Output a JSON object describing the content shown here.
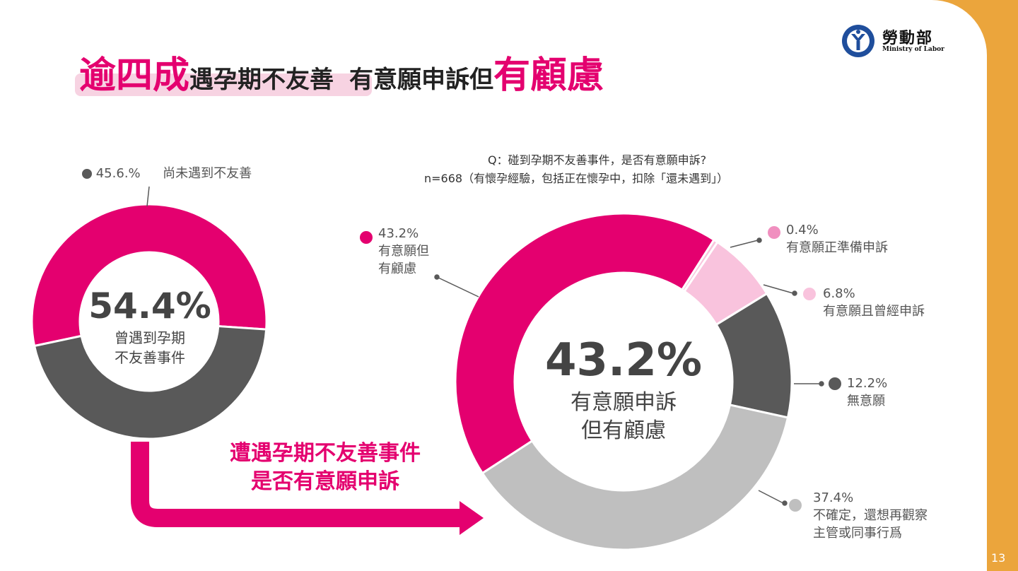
{
  "colors": {
    "pink": "#e4006f",
    "dark_gray": "#595959",
    "light_pink": "#f9c3dd",
    "light_gray": "#bfbfbf",
    "orange": "#eba53c"
  },
  "title": {
    "part1": "逾四成",
    "part2": "遇孕期不友善",
    "part3": "有意願申訴但",
    "part4": "有顧慮"
  },
  "logo": {
    "name_zh": "勞動部",
    "name_en": "Ministry of Labor",
    "icon": "ministry-of-labor-emblem"
  },
  "question": {
    "line1": "Q：碰到孕期不友善事件，是否有意願申訴?",
    "line2": "n=668（有懷孕經驗，包括正在懷孕中，扣除「還未遇到」）"
  },
  "left_chart": {
    "center_pct": "54.4%",
    "center_line1": "曾遇到孕期",
    "center_line2": "不友善事件",
    "unmet_label": "45.6.%",
    "unmet_text": "尚未遇到不友善"
  },
  "arrow_caption": {
    "line1": "遭遇孕期不友善事件",
    "line2": "是否有意願申訴"
  },
  "right_chart": {
    "center_pct": "43.2%",
    "center_line1": "有意願申訴",
    "center_line2": "但有顧慮",
    "labels": [
      {
        "pct": "43.2%",
        "line1": "有意願但",
        "line2": "有顧慮"
      },
      {
        "pct": "0.4%",
        "line1": "有意願正準備申訴"
      },
      {
        "pct": "6.8%",
        "line1": "有意願且曾經申訴"
      },
      {
        "pct": "12.2%",
        "line1": "無意願"
      },
      {
        "pct": "37.4%",
        "line1": "不確定，還想再觀察",
        "line2": "主管或同事行爲"
      }
    ]
  },
  "page_number": "13",
  "chart_data": [
    {
      "type": "pie",
      "categories": [
        "曾遇到孕期不友善事件",
        "尚未遇到不友善"
      ],
      "values": [
        54.4,
        45.6
      ],
      "colors": [
        "#e4006f",
        "#595959"
      ],
      "hole": "donut"
    },
    {
      "type": "pie",
      "categories": [
        "有意願但有顧慮",
        "有意願正準備申訴",
        "有意願且曾經申訴",
        "無意願",
        "不確定，還想再觀察主管或同事行爲"
      ],
      "values": [
        43.2,
        0.4,
        6.8,
        12.2,
        37.4
      ],
      "colors": [
        "#e4006f",
        "#f9c3dd",
        "#f9c3dd",
        "#595959",
        "#bfbfbf"
      ],
      "hole": "donut"
    }
  ]
}
